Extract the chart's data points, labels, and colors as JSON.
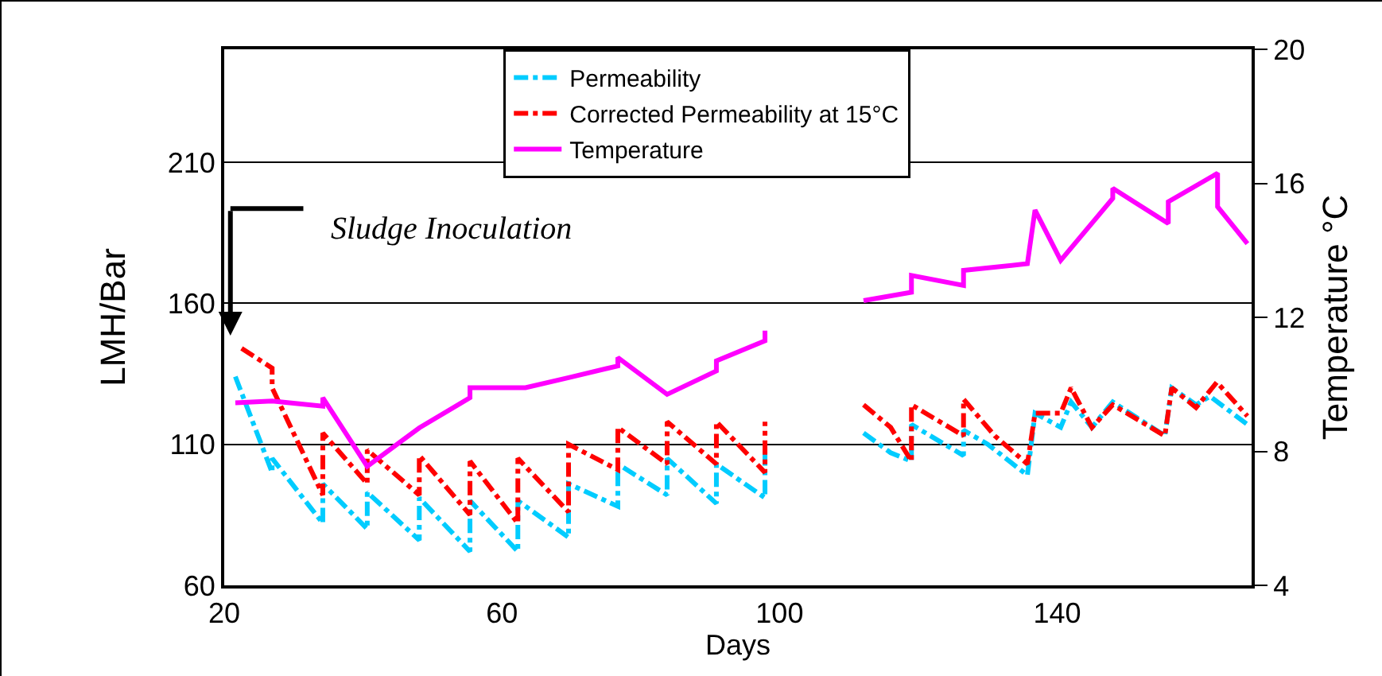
{
  "chart_data": {
    "type": "line",
    "xlabel": "Days",
    "ylabel": "LMH/Bar",
    "y2label": "Temperature °C",
    "xlim": [
      20,
      168
    ],
    "xticks": [
      20,
      60,
      100,
      140
    ],
    "ylim": [
      60,
      250
    ],
    "yticks": [
      60,
      110,
      160,
      210
    ],
    "y2lim": [
      4,
      20
    ],
    "y2ticks": [
      4,
      8,
      12,
      16,
      20
    ],
    "grid": "y",
    "legend": "top",
    "marker": "none",
    "series": [
      {
        "name": "Permeability",
        "color": "#00ccff",
        "line_style": "dashed",
        "x": [
          21.6,
          26.9,
          26.9,
          34.2,
          34.2,
          40.6,
          40.6,
          48.1,
          48.1,
          55.4,
          55.4,
          62.3,
          62.3,
          69.6,
          69.6,
          76.7,
          76.7,
          83.8,
          83.8,
          90.9,
          90.9,
          97.9,
          97.9,
          105,
          112.1,
          116,
          119,
          119,
          126.5,
          126.5,
          130,
          135.7,
          136.8,
          140.5,
          142,
          145,
          148,
          155.5,
          156.5,
          160,
          162,
          167.4
        ],
        "values": [
          134,
          100,
          105,
          82,
          96,
          80,
          93,
          76,
          91,
          72,
          90,
          72,
          90,
          77,
          96,
          88,
          103,
          92,
          105,
          89,
          103,
          91,
          108,
          null,
          114,
          107,
          104,
          117,
          106,
          115,
          110,
          99,
          121,
          116,
          125,
          116,
          125,
          113,
          130,
          124,
          127,
          117
        ]
      },
      {
        "name": "Corrected Permeability at 15°C",
        "color": "#ff0000",
        "line_style": "dashed",
        "x": [
          22.5,
          26.9,
          26.9,
          34.2,
          34.2,
          40.6,
          40.6,
          48.1,
          48.1,
          55.4,
          55.4,
          62.3,
          62.3,
          69.6,
          69.6,
          76.7,
          76.7,
          83.8,
          83.8,
          90.9,
          90.9,
          97.9,
          97.9,
          105,
          112.1,
          116,
          119,
          119,
          126.5,
          126.5,
          131,
          135.7,
          136.8,
          140.5,
          142,
          145,
          148,
          155.5,
          156.5,
          160,
          163,
          167.4
        ],
        "values": [
          144,
          137,
          130,
          92,
          114,
          96,
          108,
          92,
          106,
          85,
          104,
          82,
          105,
          86,
          110,
          101,
          116,
          103,
          118,
          103,
          118,
          100,
          118,
          null,
          124,
          116,
          104,
          124,
          113,
          126,
          113,
          103,
          121,
          121,
          130,
          116,
          124,
          113,
          130,
          123,
          132,
          120
        ]
      },
      {
        "name": "Temperature",
        "color": "#ff00ff",
        "line_style": "solid",
        "axis": "y2",
        "x": [
          21.6,
          26.9,
          34.2,
          34.2,
          40.6,
          48.1,
          55.4,
          55.4,
          63.4,
          69.6,
          76.7,
          76.7,
          83.8,
          90.9,
          90.9,
          97.9,
          97.9,
          105,
          112.1,
          119,
          119,
          126.5,
          126.5,
          135.7,
          136.8,
          140.5,
          148,
          148,
          156,
          156,
          163.1,
          163.1,
          167.4
        ],
        "values": [
          9.45,
          9.5,
          9.35,
          9.6,
          7.55,
          8.7,
          9.6,
          9.9,
          9.9,
          10.2,
          10.55,
          10.8,
          9.7,
          10.4,
          10.7,
          11.3,
          11.6,
          null,
          12.5,
          12.75,
          13.25,
          12.95,
          13.4,
          13.6,
          15.2,
          13.7,
          15.55,
          15.85,
          14.8,
          15.45,
          16.3,
          15.3,
          14.2
        ]
      }
    ],
    "annotations": [
      "Sludge Inoculation"
    ]
  }
}
